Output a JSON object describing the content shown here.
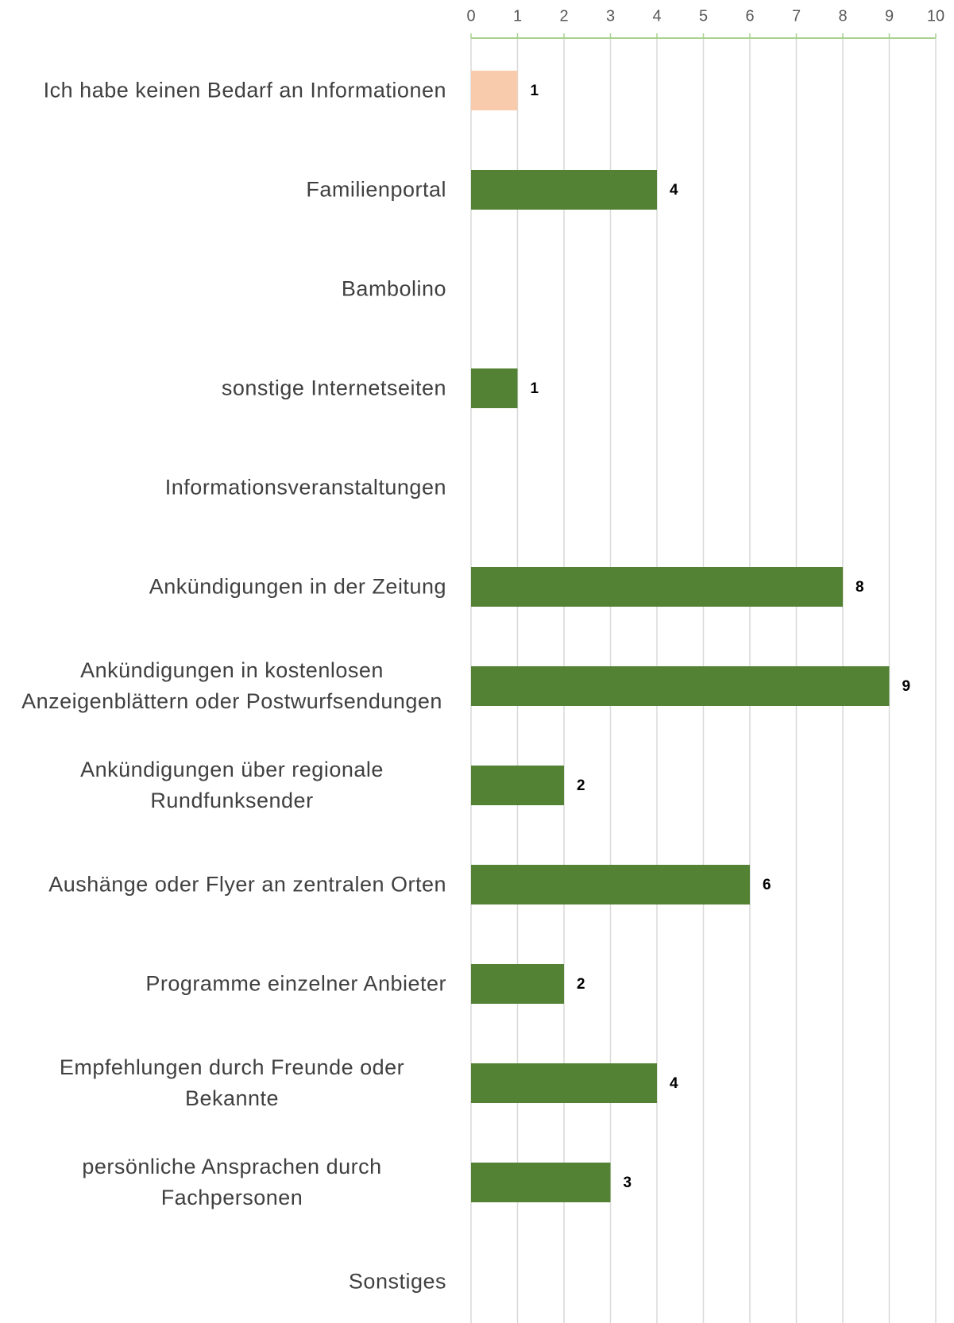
{
  "chart_data": {
    "type": "bar",
    "orientation": "horizontal",
    "categories": [
      "Ich habe keinen Bedarf an Informationen",
      "Familienportal",
      "Bambolino",
      "sonstige Internetseiten",
      "Informationsveranstaltungen",
      "Ankündigungen in der Zeitung",
      "Ankündigungen in kostenlosen Anzeigenblättern oder Postwurfsendungen",
      "Ankündigungen über regionale Rundfunksender",
      "Aushänge oder Flyer an zentralen Orten",
      "Programme einzelner Anbieter",
      "Empfehlungen durch Freunde oder Bekannte",
      "persönliche Ansprachen durch Fachpersonen",
      "Sonstiges"
    ],
    "values": [
      1,
      4,
      null,
      1,
      null,
      8,
      9,
      2,
      6,
      2,
      4,
      3,
      null
    ],
    "colors": [
      "#f8cbad",
      "#548235",
      "#548235",
      "#548235",
      "#548235",
      "#548235",
      "#548235",
      "#548235",
      "#548235",
      "#548235",
      "#548235",
      "#548235",
      "#548235"
    ],
    "xlim": [
      0,
      10
    ],
    "xticks": [
      0,
      1,
      2,
      3,
      4,
      5,
      6,
      7,
      8,
      9,
      10
    ],
    "grid": true
  }
}
